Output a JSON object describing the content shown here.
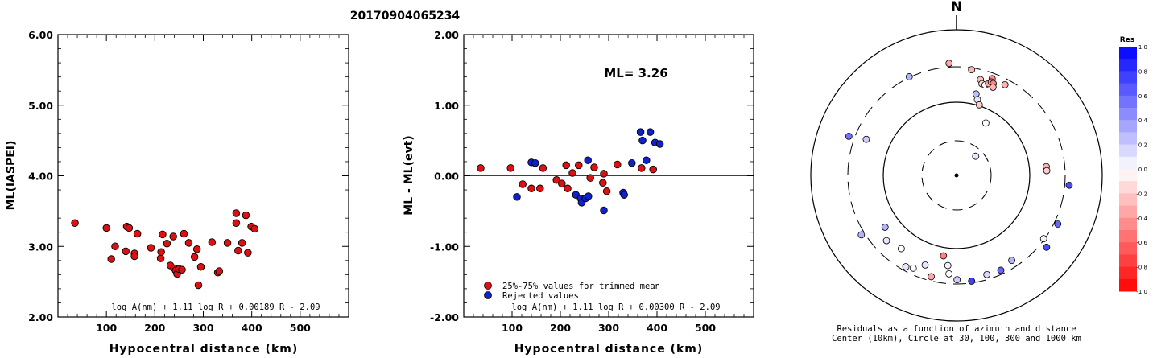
{
  "title": "20170904065234",
  "chart_data": [
    {
      "type": "scatter",
      "ylabel": "ML(IASPEI)",
      "xlabel": "Hypocentral distance (km)",
      "xlim": [
        0,
        600
      ],
      "ylim": [
        2.0,
        6.0
      ],
      "xticks": [
        "100",
        "200",
        "300",
        "400",
        "500"
      ],
      "yticks": [
        "2.00",
        "3.00",
        "4.00",
        "5.00",
        "6.00"
      ],
      "formula": "log A(nm) + 1.11 log R + 0.00189 R - 2.09",
      "point_color": "#dd1111",
      "points": [
        [
          35,
          3.33
        ],
        [
          100,
          3.26
        ],
        [
          110,
          2.82
        ],
        [
          118,
          3.0
        ],
        [
          140,
          2.93
        ],
        [
          142,
          3.28
        ],
        [
          147,
          3.26
        ],
        [
          158,
          2.9
        ],
        [
          158,
          2.86
        ],
        [
          164,
          3.18
        ],
        [
          192,
          2.98
        ],
        [
          212,
          2.83
        ],
        [
          213,
          2.92
        ],
        [
          216,
          3.17
        ],
        [
          225,
          3.04
        ],
        [
          232,
          2.73
        ],
        [
          238,
          3.14
        ],
        [
          240,
          2.69
        ],
        [
          243,
          2.66
        ],
        [
          246,
          2.61
        ],
        [
          250,
          2.68
        ],
        [
          256,
          2.67
        ],
        [
          260,
          3.18
        ],
        [
          270,
          3.05
        ],
        [
          282,
          2.85
        ],
        [
          287,
          2.96
        ],
        [
          290,
          2.45
        ],
        [
          295,
          2.71
        ],
        [
          318,
          3.06
        ],
        [
          330,
          2.63
        ],
        [
          333,
          2.65
        ],
        [
          350,
          3.05
        ],
        [
          368,
          3.47
        ],
        [
          368,
          3.33
        ],
        [
          372,
          2.94
        ],
        [
          380,
          3.05
        ],
        [
          388,
          3.44
        ],
        [
          392,
          2.91
        ],
        [
          399,
          3.28
        ],
        [
          406,
          3.25
        ]
      ]
    },
    {
      "type": "scatter",
      "ylabel": "ML - ML(evt)",
      "xlabel": "Hypocentral distance (km)",
      "xlim": [
        0,
        600
      ],
      "ylim": [
        -2.0,
        2.0
      ],
      "xticks": [
        "100",
        "200",
        "300",
        "400",
        "500"
      ],
      "yticks": [
        "-2.00",
        "-1.00",
        "0.00",
        "1.00",
        "2.00"
      ],
      "annotation": "ML= 3.26",
      "formula": "log A(nm) + 1.11 log R + 0.00300 R - 2.09",
      "legend": [
        {
          "label": "25%-75% values for trimmed mean",
          "color": "#dd1111"
        },
        {
          "label": "Rejected values",
          "color": "#1122cc"
        }
      ],
      "series": [
        {
          "name": "25%-75% values for trimmed mean",
          "color": "#dd1111",
          "points": [
            [
              35,
              0.11
            ],
            [
              97,
              0.11
            ],
            [
              122,
              -0.12
            ],
            [
              140,
              -0.18
            ],
            [
              158,
              -0.18
            ],
            [
              164,
              0.11
            ],
            [
              192,
              -0.06
            ],
            [
              203,
              -0.11
            ],
            [
              212,
              0.15
            ],
            [
              215,
              -0.18
            ],
            [
              225,
              0.04
            ],
            [
              238,
              0.15
            ],
            [
              262,
              -0.03
            ],
            [
              270,
              0.12
            ],
            [
              288,
              -0.1
            ],
            [
              290,
              0.03
            ],
            [
              296,
              -0.22
            ],
            [
              318,
              0.16
            ],
            [
              368,
              0.11
            ],
            [
              392,
              0.09
            ]
          ]
        },
        {
          "name": "Rejected values",
          "color": "#1122cc",
          "points": [
            [
              110,
              -0.3
            ],
            [
              140,
              0.19
            ],
            [
              148,
              0.18
            ],
            [
              232,
              -0.27
            ],
            [
              242,
              -0.32
            ],
            [
              244,
              -0.38
            ],
            [
              252,
              -0.32
            ],
            [
              258,
              -0.29
            ],
            [
              257,
              0.22
            ],
            [
              290,
              -0.49
            ],
            [
              330,
              -0.24
            ],
            [
              332,
              -0.27
            ],
            [
              348,
              0.18
            ],
            [
              366,
              0.62
            ],
            [
              370,
              0.5
            ],
            [
              378,
              0.22
            ],
            [
              386,
              0.62
            ],
            [
              396,
              0.47
            ],
            [
              406,
              0.45
            ]
          ]
        }
      ]
    },
    {
      "type": "polar-scatter",
      "north_label": "N",
      "caption_line1": "Residuals as a function of azimuth and distance",
      "caption_line2": "Center (10km), Circle at 30, 100, 300 and 1000 km",
      "legend_title": "Res",
      "colorbar_ticks": [
        "1.0",
        "0.8",
        "0.6",
        "0.4",
        "0.2",
        "0.0",
        "-0.2",
        "-0.4",
        "-0.6",
        "-0.8",
        "-1.0"
      ],
      "colorbar_range": [
        -1.0,
        1.0
      ],
      "points": [
        {
          "azimuth_deg": -25.6,
          "radius_frac": 0.751,
          "res": 0.3
        },
        {
          "azimuth_deg": -3.8,
          "radius_frac": 0.771,
          "res": -0.35
        },
        {
          "azimuth_deg": 8.1,
          "radius_frac": 0.733,
          "res": -0.3
        },
        {
          "azimuth_deg": 14.0,
          "radius_frac": 0.678,
          "res": -0.25
        },
        {
          "azimuth_deg": 15.5,
          "radius_frac": 0.653,
          "res": -0.15
        },
        {
          "azimuth_deg": 17.5,
          "radius_frac": 0.651,
          "res": 0.0
        },
        {
          "azimuth_deg": 19.2,
          "radius_frac": 0.667,
          "res": -0.35
        },
        {
          "azimuth_deg": 20.2,
          "radius_frac": 0.708,
          "res": -0.45
        },
        {
          "azimuth_deg": 20.4,
          "radius_frac": 0.684,
          "res": -0.4
        },
        {
          "azimuth_deg": 21.8,
          "radius_frac": 0.679,
          "res": -0.5
        },
        {
          "azimuth_deg": 22.5,
          "radius_frac": 0.655,
          "res": -0.3
        },
        {
          "azimuth_deg": 28.1,
          "radius_frac": 0.706,
          "res": -0.3
        },
        {
          "azimuth_deg": 13.5,
          "radius_frac": 0.575,
          "res": 0.25
        },
        {
          "azimuth_deg": 15.4,
          "radius_frac": 0.54,
          "res": 0.1
        },
        {
          "azimuth_deg": 17.9,
          "radius_frac": 0.509,
          "res": -0.2
        },
        {
          "azimuth_deg": 29.2,
          "radius_frac": 0.412,
          "res": 0.0
        },
        {
          "azimuth_deg": 45.0,
          "radius_frac": 0.186,
          "res": 0.1
        },
        {
          "azimuth_deg": 84.4,
          "radius_frac": 0.619,
          "res": -0.3
        },
        {
          "azimuth_deg": 87.0,
          "radius_frac": 0.62,
          "res": -0.2
        },
        {
          "azimuth_deg": 95.0,
          "radius_frac": 0.776,
          "res": 0.7
        },
        {
          "azimuth_deg": 115.7,
          "radius_frac": 0.771,
          "res": 0.6
        },
        {
          "azimuth_deg": 128.6,
          "radius_frac": 0.791,
          "res": 0.7
        },
        {
          "azimuth_deg": 126.0,
          "radius_frac": 0.739,
          "res": 0.05
        },
        {
          "azimuth_deg": 147.0,
          "radius_frac": 0.696,
          "res": 0.3
        },
        {
          "azimuth_deg": 155.0,
          "radius_frac": 0.719,
          "res": 0.6
        },
        {
          "azimuth_deg": 163.0,
          "radius_frac": 0.712,
          "res": 0.15
        },
        {
          "azimuth_deg": 171.9,
          "radius_frac": 0.734,
          "res": 0.75
        },
        {
          "azimuth_deg": 179.7,
          "radius_frac": 0.716,
          "res": 0.2
        },
        {
          "azimuth_deg": 184.4,
          "radius_frac": 0.678,
          "res": 0.0
        },
        {
          "azimuth_deg": 189.2,
          "radius_frac": 0.56,
          "res": -0.5
        },
        {
          "azimuth_deg": 185.5,
          "radius_frac": 0.622,
          "res": 0.05
        },
        {
          "azimuth_deg": 194.0,
          "radius_frac": 0.717,
          "res": -0.35
        },
        {
          "azimuth_deg": 199.3,
          "radius_frac": 0.652,
          "res": 0.1
        },
        {
          "azimuth_deg": 205.0,
          "radius_frac": 0.703,
          "res": 0.0
        },
        {
          "azimuth_deg": 209.0,
          "radius_frac": 0.717,
          "res": 0.1
        },
        {
          "azimuth_deg": 217.0,
          "radius_frac": 0.63,
          "res": 0.0
        },
        {
          "azimuth_deg": 227.0,
          "radius_frac": 0.657,
          "res": 0.1
        },
        {
          "azimuth_deg": 234.0,
          "radius_frac": 0.606,
          "res": 0.3
        },
        {
          "azimuth_deg": 238.0,
          "radius_frac": 0.77,
          "res": 0.3
        },
        {
          "azimuth_deg": 291.8,
          "radius_frac": 0.667,
          "res": 0.2
        },
        {
          "azimuth_deg": 290.0,
          "radius_frac": 0.786,
          "res": 0.55
        }
      ]
    }
  ]
}
